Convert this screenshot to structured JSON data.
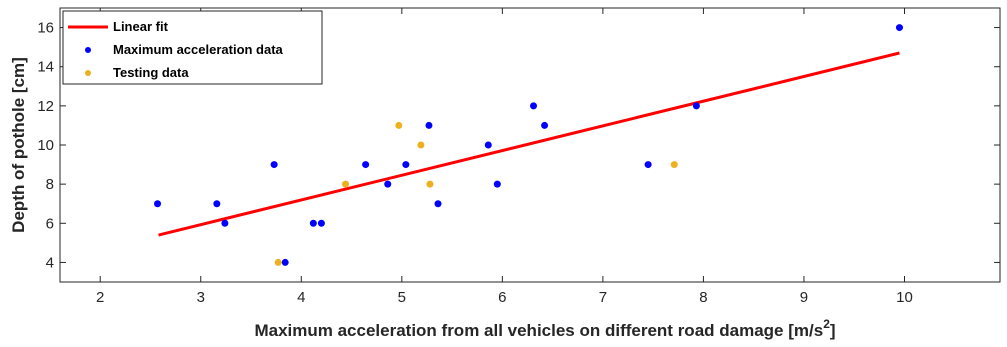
{
  "chart_data": {
    "type": "scatter",
    "xlabel": "Maximum acceleration from all vehicles on different road damage [m/s",
    "xlabel_superscript": "2",
    "xlabel_suffix": "]",
    "ylabel": "Depth of pothole [cm]",
    "xlim": [
      1.6,
      10.95
    ],
    "ylim": [
      3,
      17
    ],
    "xticks": [
      "2",
      "3",
      "4",
      "5",
      "6",
      "7",
      "8",
      "9",
      "10"
    ],
    "yticks": [
      "4",
      "6",
      "8",
      "10",
      "12",
      "14",
      "16"
    ],
    "grid": false,
    "legend_position": "top-left",
    "series": [
      {
        "name": "Linear fit",
        "type": "line",
        "color": "#ff0000",
        "x": [
          2.58,
          9.95
        ],
        "y": [
          5.4,
          14.7
        ]
      },
      {
        "name": "Maximum acceleration data",
        "type": "scatter",
        "color": "#0000ff",
        "x": [
          2.57,
          3.16,
          3.24,
          3.73,
          3.84,
          4.12,
          4.2,
          4.64,
          4.86,
          5.04,
          5.27,
          5.36,
          5.86,
          5.95,
          6.31,
          6.42,
          7.45,
          7.93,
          9.95
        ],
        "y": [
          7,
          7,
          6,
          9,
          4,
          6,
          6,
          9,
          8,
          9,
          11,
          7,
          10,
          8,
          12,
          11,
          9,
          12,
          16
        ]
      },
      {
        "name": "Testing data",
        "type": "scatter",
        "color": "#edb120",
        "x": [
          3.77,
          4.44,
          4.97,
          5.19,
          5.28,
          7.71
        ],
        "y": [
          4,
          8,
          11,
          10,
          8,
          9
        ]
      }
    ]
  }
}
